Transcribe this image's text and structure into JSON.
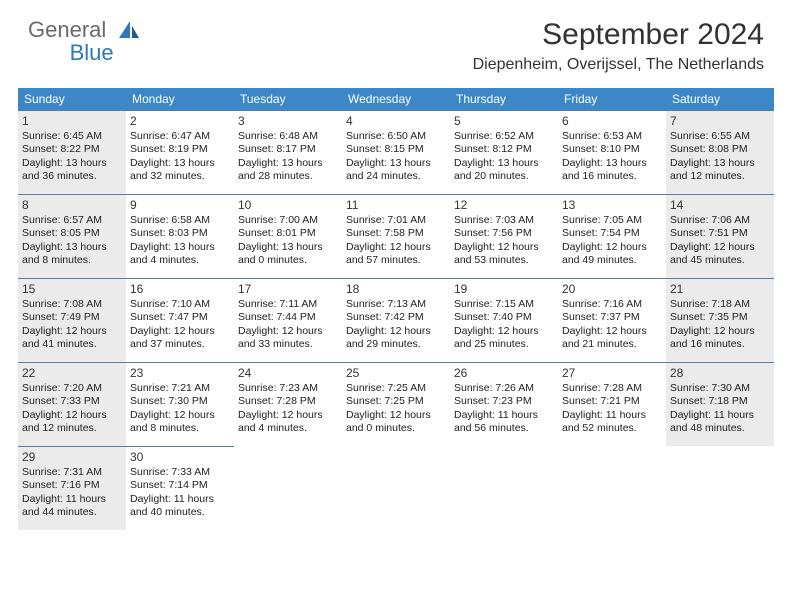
{
  "logo": {
    "general": "General",
    "blue": "Blue"
  },
  "title": "September 2024",
  "subtitle": "Diepenheim, Overijssel, The Netherlands",
  "colors": {
    "header_bg": "#3c87c7",
    "header_text": "#ffffff",
    "cell_border": "#5a7ea0",
    "shaded_bg": "#ebebeb",
    "logo_general": "#6a6a6a",
    "logo_blue": "#2f79b9"
  },
  "day_headers": [
    "Sunday",
    "Monday",
    "Tuesday",
    "Wednesday",
    "Thursday",
    "Friday",
    "Saturday"
  ],
  "weeks": [
    [
      {
        "num": "1",
        "shaded": true,
        "sunrise": "Sunrise: 6:45 AM",
        "sunset": "Sunset: 8:22 PM",
        "daylight1": "Daylight: 13 hours",
        "daylight2": "and 36 minutes."
      },
      {
        "num": "2",
        "shaded": false,
        "sunrise": "Sunrise: 6:47 AM",
        "sunset": "Sunset: 8:19 PM",
        "daylight1": "Daylight: 13 hours",
        "daylight2": "and 32 minutes."
      },
      {
        "num": "3",
        "shaded": false,
        "sunrise": "Sunrise: 6:48 AM",
        "sunset": "Sunset: 8:17 PM",
        "daylight1": "Daylight: 13 hours",
        "daylight2": "and 28 minutes."
      },
      {
        "num": "4",
        "shaded": false,
        "sunrise": "Sunrise: 6:50 AM",
        "sunset": "Sunset: 8:15 PM",
        "daylight1": "Daylight: 13 hours",
        "daylight2": "and 24 minutes."
      },
      {
        "num": "5",
        "shaded": false,
        "sunrise": "Sunrise: 6:52 AM",
        "sunset": "Sunset: 8:12 PM",
        "daylight1": "Daylight: 13 hours",
        "daylight2": "and 20 minutes."
      },
      {
        "num": "6",
        "shaded": false,
        "sunrise": "Sunrise: 6:53 AM",
        "sunset": "Sunset: 8:10 PM",
        "daylight1": "Daylight: 13 hours",
        "daylight2": "and 16 minutes."
      },
      {
        "num": "7",
        "shaded": true,
        "sunrise": "Sunrise: 6:55 AM",
        "sunset": "Sunset: 8:08 PM",
        "daylight1": "Daylight: 13 hours",
        "daylight2": "and 12 minutes."
      }
    ],
    [
      {
        "num": "8",
        "shaded": true,
        "sunrise": "Sunrise: 6:57 AM",
        "sunset": "Sunset: 8:05 PM",
        "daylight1": "Daylight: 13 hours",
        "daylight2": "and 8 minutes."
      },
      {
        "num": "9",
        "shaded": false,
        "sunrise": "Sunrise: 6:58 AM",
        "sunset": "Sunset: 8:03 PM",
        "daylight1": "Daylight: 13 hours",
        "daylight2": "and 4 minutes."
      },
      {
        "num": "10",
        "shaded": false,
        "sunrise": "Sunrise: 7:00 AM",
        "sunset": "Sunset: 8:01 PM",
        "daylight1": "Daylight: 13 hours",
        "daylight2": "and 0 minutes."
      },
      {
        "num": "11",
        "shaded": false,
        "sunrise": "Sunrise: 7:01 AM",
        "sunset": "Sunset: 7:58 PM",
        "daylight1": "Daylight: 12 hours",
        "daylight2": "and 57 minutes."
      },
      {
        "num": "12",
        "shaded": false,
        "sunrise": "Sunrise: 7:03 AM",
        "sunset": "Sunset: 7:56 PM",
        "daylight1": "Daylight: 12 hours",
        "daylight2": "and 53 minutes."
      },
      {
        "num": "13",
        "shaded": false,
        "sunrise": "Sunrise: 7:05 AM",
        "sunset": "Sunset: 7:54 PM",
        "daylight1": "Daylight: 12 hours",
        "daylight2": "and 49 minutes."
      },
      {
        "num": "14",
        "shaded": true,
        "sunrise": "Sunrise: 7:06 AM",
        "sunset": "Sunset: 7:51 PM",
        "daylight1": "Daylight: 12 hours",
        "daylight2": "and 45 minutes."
      }
    ],
    [
      {
        "num": "15",
        "shaded": true,
        "sunrise": "Sunrise: 7:08 AM",
        "sunset": "Sunset: 7:49 PM",
        "daylight1": "Daylight: 12 hours",
        "daylight2": "and 41 minutes."
      },
      {
        "num": "16",
        "shaded": false,
        "sunrise": "Sunrise: 7:10 AM",
        "sunset": "Sunset: 7:47 PM",
        "daylight1": "Daylight: 12 hours",
        "daylight2": "and 37 minutes."
      },
      {
        "num": "17",
        "shaded": false,
        "sunrise": "Sunrise: 7:11 AM",
        "sunset": "Sunset: 7:44 PM",
        "daylight1": "Daylight: 12 hours",
        "daylight2": "and 33 minutes."
      },
      {
        "num": "18",
        "shaded": false,
        "sunrise": "Sunrise: 7:13 AM",
        "sunset": "Sunset: 7:42 PM",
        "daylight1": "Daylight: 12 hours",
        "daylight2": "and 29 minutes."
      },
      {
        "num": "19",
        "shaded": false,
        "sunrise": "Sunrise: 7:15 AM",
        "sunset": "Sunset: 7:40 PM",
        "daylight1": "Daylight: 12 hours",
        "daylight2": "and 25 minutes."
      },
      {
        "num": "20",
        "shaded": false,
        "sunrise": "Sunrise: 7:16 AM",
        "sunset": "Sunset: 7:37 PM",
        "daylight1": "Daylight: 12 hours",
        "daylight2": "and 21 minutes."
      },
      {
        "num": "21",
        "shaded": true,
        "sunrise": "Sunrise: 7:18 AM",
        "sunset": "Sunset: 7:35 PM",
        "daylight1": "Daylight: 12 hours",
        "daylight2": "and 16 minutes."
      }
    ],
    [
      {
        "num": "22",
        "shaded": true,
        "sunrise": "Sunrise: 7:20 AM",
        "sunset": "Sunset: 7:33 PM",
        "daylight1": "Daylight: 12 hours",
        "daylight2": "and 12 minutes."
      },
      {
        "num": "23",
        "shaded": false,
        "sunrise": "Sunrise: 7:21 AM",
        "sunset": "Sunset: 7:30 PM",
        "daylight1": "Daylight: 12 hours",
        "daylight2": "and 8 minutes."
      },
      {
        "num": "24",
        "shaded": false,
        "sunrise": "Sunrise: 7:23 AM",
        "sunset": "Sunset: 7:28 PM",
        "daylight1": "Daylight: 12 hours",
        "daylight2": "and 4 minutes."
      },
      {
        "num": "25",
        "shaded": false,
        "sunrise": "Sunrise: 7:25 AM",
        "sunset": "Sunset: 7:25 PM",
        "daylight1": "Daylight: 12 hours",
        "daylight2": "and 0 minutes."
      },
      {
        "num": "26",
        "shaded": false,
        "sunrise": "Sunrise: 7:26 AM",
        "sunset": "Sunset: 7:23 PM",
        "daylight1": "Daylight: 11 hours",
        "daylight2": "and 56 minutes."
      },
      {
        "num": "27",
        "shaded": false,
        "sunrise": "Sunrise: 7:28 AM",
        "sunset": "Sunset: 7:21 PM",
        "daylight1": "Daylight: 11 hours",
        "daylight2": "and 52 minutes."
      },
      {
        "num": "28",
        "shaded": true,
        "sunrise": "Sunrise: 7:30 AM",
        "sunset": "Sunset: 7:18 PM",
        "daylight1": "Daylight: 11 hours",
        "daylight2": "and 48 minutes."
      }
    ],
    [
      {
        "num": "29",
        "shaded": true,
        "sunrise": "Sunrise: 7:31 AM",
        "sunset": "Sunset: 7:16 PM",
        "daylight1": "Daylight: 11 hours",
        "daylight2": "and 44 minutes."
      },
      {
        "num": "30",
        "shaded": false,
        "sunrise": "Sunrise: 7:33 AM",
        "sunset": "Sunset: 7:14 PM",
        "daylight1": "Daylight: 11 hours",
        "daylight2": "and 40 minutes."
      },
      {
        "empty": true
      },
      {
        "empty": true
      },
      {
        "empty": true
      },
      {
        "empty": true
      },
      {
        "empty": true
      }
    ]
  ]
}
